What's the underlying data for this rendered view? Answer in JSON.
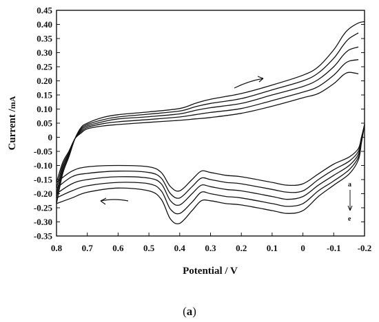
{
  "chart_data": {
    "type": "line",
    "title": "",
    "xlabel": "Potential / V",
    "ylabel_main": "Current /",
    "ylabel_unit": "mA",
    "xlim": [
      0.8,
      -0.2
    ],
    "ylim": [
      -0.35,
      0.45
    ],
    "x_reversed": true,
    "x_ticks": [
      0.8,
      0.7,
      0.6,
      0.5,
      0.4,
      0.3,
      0.2,
      0.1,
      0,
      -0.1,
      -0.2
    ],
    "x_tick_labels": [
      "0.8",
      "0.7",
      "0.6",
      "0.5",
      "0.4",
      "0.3",
      "0.2",
      "0.1",
      "0",
      "-0.1",
      "-0.2"
    ],
    "y_ticks": [
      0.45,
      0.4,
      0.35,
      0.3,
      0.25,
      0.2,
      0.15,
      0.1,
      0.05,
      0,
      -0.05,
      -0.1,
      -0.15,
      -0.2,
      -0.25,
      -0.3,
      -0.35
    ],
    "y_tick_labels": [
      "0.45",
      "0.40",
      "0.35",
      "0.30",
      "0.25",
      "0.20",
      "0.15",
      "0.10",
      "0.05",
      "0",
      "-0.05",
      "-0.10",
      "-0.15",
      "-0.20",
      "-0.25",
      "-0.30",
      "-0.35"
    ],
    "grid": false,
    "annotations": {
      "series_order_start": "a",
      "series_order_end": "e"
    },
    "series": [
      {
        "anodic": [
          [
            0.8,
            -0.16
          ],
          [
            0.78,
            -0.09
          ],
          [
            0.76,
            -0.05
          ],
          [
            0.74,
            -0.005
          ],
          [
            0.72,
            0.015
          ],
          [
            0.7,
            0.03
          ],
          [
            0.65,
            0.04
          ],
          [
            0.6,
            0.045
          ],
          [
            0.5,
            0.053
          ],
          [
            0.4,
            0.06
          ],
          [
            0.35,
            0.065
          ],
          [
            0.3,
            0.07
          ],
          [
            0.2,
            0.085
          ],
          [
            0.1,
            0.11
          ],
          [
            0,
            0.14
          ],
          [
            -0.05,
            0.155
          ],
          [
            -0.1,
            0.19
          ],
          [
            -0.13,
            0.22
          ],
          [
            -0.15,
            0.23
          ],
          [
            -0.18,
            0.225
          ]
        ],
        "cathodic": [
          [
            -0.2,
            0.045
          ],
          [
            -0.19,
            0.0
          ],
          [
            -0.18,
            -0.04
          ],
          [
            -0.15,
            -0.07
          ],
          [
            -0.1,
            -0.095
          ],
          [
            -0.05,
            -0.13
          ],
          [
            0.0,
            -0.165
          ],
          [
            0.05,
            -0.17
          ],
          [
            0.1,
            -0.16
          ],
          [
            0.2,
            -0.14
          ],
          [
            0.25,
            -0.135
          ],
          [
            0.3,
            -0.125
          ],
          [
            0.33,
            -0.12
          ],
          [
            0.36,
            -0.15
          ],
          [
            0.4,
            -0.19
          ],
          [
            0.43,
            -0.175
          ],
          [
            0.46,
            -0.125
          ],
          [
            0.5,
            -0.105
          ],
          [
            0.6,
            -0.1
          ],
          [
            0.7,
            -0.105
          ],
          [
            0.75,
            -0.12
          ],
          [
            0.8,
            -0.16
          ]
        ]
      },
      {
        "anodic": [
          [
            0.8,
            -0.18
          ],
          [
            0.78,
            -0.1
          ],
          [
            0.76,
            -0.055
          ],
          [
            0.74,
            -0.005
          ],
          [
            0.72,
            0.02
          ],
          [
            0.7,
            0.035
          ],
          [
            0.65,
            0.048
          ],
          [
            0.6,
            0.055
          ],
          [
            0.5,
            0.063
          ],
          [
            0.4,
            0.072
          ],
          [
            0.35,
            0.08
          ],
          [
            0.3,
            0.088
          ],
          [
            0.2,
            0.102
          ],
          [
            0.1,
            0.13
          ],
          [
            0,
            0.16
          ],
          [
            -0.05,
            0.18
          ],
          [
            -0.1,
            0.22
          ],
          [
            -0.13,
            0.255
          ],
          [
            -0.15,
            0.27
          ],
          [
            -0.18,
            0.275
          ]
        ],
        "cathodic": [
          [
            -0.2,
            0.045
          ],
          [
            -0.19,
            -0.005
          ],
          [
            -0.18,
            -0.05
          ],
          [
            -0.15,
            -0.085
          ],
          [
            -0.1,
            -0.115
          ],
          [
            -0.05,
            -0.15
          ],
          [
            0.0,
            -0.19
          ],
          [
            0.05,
            -0.195
          ],
          [
            0.1,
            -0.185
          ],
          [
            0.2,
            -0.165
          ],
          [
            0.25,
            -0.16
          ],
          [
            0.3,
            -0.15
          ],
          [
            0.33,
            -0.145
          ],
          [
            0.36,
            -0.175
          ],
          [
            0.4,
            -0.215
          ],
          [
            0.43,
            -0.2
          ],
          [
            0.46,
            -0.145
          ],
          [
            0.5,
            -0.125
          ],
          [
            0.6,
            -0.12
          ],
          [
            0.7,
            -0.128
          ],
          [
            0.75,
            -0.14
          ],
          [
            0.8,
            -0.18
          ]
        ]
      },
      {
        "anodic": [
          [
            0.8,
            -0.2
          ],
          [
            0.78,
            -0.11
          ],
          [
            0.76,
            -0.06
          ],
          [
            0.74,
            -0.005
          ],
          [
            0.72,
            0.025
          ],
          [
            0.7,
            0.04
          ],
          [
            0.65,
            0.055
          ],
          [
            0.6,
            0.065
          ],
          [
            0.5,
            0.073
          ],
          [
            0.4,
            0.083
          ],
          [
            0.35,
            0.095
          ],
          [
            0.3,
            0.105
          ],
          [
            0.2,
            0.12
          ],
          [
            0.1,
            0.15
          ],
          [
            0,
            0.18
          ],
          [
            -0.05,
            0.205
          ],
          [
            -0.1,
            0.25
          ],
          [
            -0.13,
            0.29
          ],
          [
            -0.15,
            0.31
          ],
          [
            -0.18,
            0.32
          ]
        ],
        "cathodic": [
          [
            -0.2,
            0.045
          ],
          [
            -0.19,
            -0.01
          ],
          [
            -0.18,
            -0.06
          ],
          [
            -0.15,
            -0.1
          ],
          [
            -0.1,
            -0.135
          ],
          [
            -0.05,
            -0.17
          ],
          [
            0.0,
            -0.21
          ],
          [
            0.05,
            -0.22
          ],
          [
            0.1,
            -0.21
          ],
          [
            0.2,
            -0.19
          ],
          [
            0.25,
            -0.185
          ],
          [
            0.3,
            -0.175
          ],
          [
            0.33,
            -0.17
          ],
          [
            0.36,
            -0.2
          ],
          [
            0.4,
            -0.24
          ],
          [
            0.43,
            -0.225
          ],
          [
            0.46,
            -0.165
          ],
          [
            0.5,
            -0.145
          ],
          [
            0.6,
            -0.14
          ],
          [
            0.7,
            -0.15
          ],
          [
            0.75,
            -0.165
          ],
          [
            0.8,
            -0.2
          ]
        ]
      },
      {
        "anodic": [
          [
            0.8,
            -0.215
          ],
          [
            0.78,
            -0.12
          ],
          [
            0.76,
            -0.065
          ],
          [
            0.74,
            -0.005
          ],
          [
            0.72,
            0.03
          ],
          [
            0.7,
            0.045
          ],
          [
            0.65,
            0.062
          ],
          [
            0.6,
            0.072
          ],
          [
            0.5,
            0.082
          ],
          [
            0.4,
            0.093
          ],
          [
            0.35,
            0.108
          ],
          [
            0.3,
            0.12
          ],
          [
            0.2,
            0.137
          ],
          [
            0.1,
            0.168
          ],
          [
            0,
            0.2
          ],
          [
            -0.05,
            0.228
          ],
          [
            -0.1,
            0.28
          ],
          [
            -0.13,
            0.325
          ],
          [
            -0.15,
            0.35
          ],
          [
            -0.18,
            0.37
          ]
        ],
        "cathodic": [
          [
            -0.2,
            0.045
          ],
          [
            -0.19,
            -0.015
          ],
          [
            -0.18,
            -0.07
          ],
          [
            -0.15,
            -0.115
          ],
          [
            -0.1,
            -0.155
          ],
          [
            -0.05,
            -0.19
          ],
          [
            0.0,
            -0.235
          ],
          [
            0.05,
            -0.245
          ],
          [
            0.1,
            -0.235
          ],
          [
            0.2,
            -0.215
          ],
          [
            0.25,
            -0.21
          ],
          [
            0.3,
            -0.2
          ],
          [
            0.33,
            -0.195
          ],
          [
            0.36,
            -0.23
          ],
          [
            0.4,
            -0.27
          ],
          [
            0.43,
            -0.255
          ],
          [
            0.46,
            -0.19
          ],
          [
            0.5,
            -0.165
          ],
          [
            0.6,
            -0.16
          ],
          [
            0.7,
            -0.172
          ],
          [
            0.75,
            -0.19
          ],
          [
            0.8,
            -0.215
          ]
        ]
      },
      {
        "anodic": [
          [
            0.8,
            -0.235
          ],
          [
            0.78,
            -0.13
          ],
          [
            0.76,
            -0.07
          ],
          [
            0.74,
            -0.005
          ],
          [
            0.72,
            0.035
          ],
          [
            0.7,
            0.05
          ],
          [
            0.65,
            0.07
          ],
          [
            0.6,
            0.08
          ],
          [
            0.5,
            0.09
          ],
          [
            0.4,
            0.102
          ],
          [
            0.35,
            0.12
          ],
          [
            0.3,
            0.135
          ],
          [
            0.2,
            0.155
          ],
          [
            0.1,
            0.185
          ],
          [
            0,
            0.22
          ],
          [
            -0.05,
            0.25
          ],
          [
            -0.1,
            0.31
          ],
          [
            -0.13,
            0.36
          ],
          [
            -0.15,
            0.385
          ],
          [
            -0.18,
            0.405
          ],
          [
            -0.2,
            0.41
          ]
        ],
        "cathodic": [
          [
            -0.2,
            0.045
          ],
          [
            -0.19,
            -0.02
          ],
          [
            -0.18,
            -0.08
          ],
          [
            -0.15,
            -0.13
          ],
          [
            -0.1,
            -0.17
          ],
          [
            -0.05,
            -0.21
          ],
          [
            0.0,
            -0.26
          ],
          [
            0.05,
            -0.27
          ],
          [
            0.1,
            -0.26
          ],
          [
            0.2,
            -0.24
          ],
          [
            0.25,
            -0.235
          ],
          [
            0.3,
            -0.225
          ],
          [
            0.33,
            -0.225
          ],
          [
            0.36,
            -0.26
          ],
          [
            0.4,
            -0.305
          ],
          [
            0.43,
            -0.29
          ],
          [
            0.46,
            -0.22
          ],
          [
            0.5,
            -0.19
          ],
          [
            0.6,
            -0.18
          ],
          [
            0.7,
            -0.195
          ],
          [
            0.75,
            -0.215
          ],
          [
            0.8,
            -0.235
          ]
        ]
      }
    ]
  },
  "figure": {
    "caption_open": "(",
    "caption_letter": "a",
    "caption_close": ")"
  }
}
